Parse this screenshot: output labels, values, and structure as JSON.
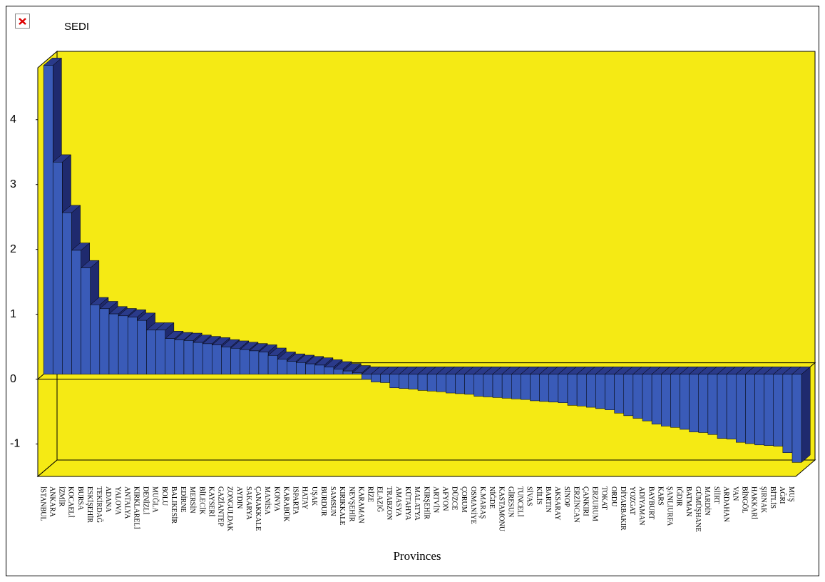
{
  "chart_data": {
    "type": "bar3d",
    "title": "SEDI",
    "x_label": "Provinces",
    "categories": [
      "İSTANBUL",
      "ANKARA",
      "İZMİR",
      "KOCAELİ",
      "BURSA",
      "ESKİŞEHİR",
      "TEKİRDAĞ",
      "ADANA",
      "YALOVA",
      "ANTALYA",
      "KIRKLARELİ",
      "DENİZLİ",
      "MUĞLA",
      "BOLU",
      "BALIKESİR",
      "EDİRNE",
      "MERSİN",
      "BİLECİK",
      "KAYSERİ",
      "GAZİANTEP",
      "ZONGULDAK",
      "AYDIN",
      "SAKARYA",
      "ÇANAKKALE",
      "MANİSA",
      "KONYA",
      "KARABÜK",
      "ISPARTA",
      "HATAY",
      "UŞAK",
      "BURDUR",
      "SAMSUN",
      "KIRIKKALE",
      "NEVŞEHİR",
      "KARAMAN",
      "RİZE",
      "ELAZIĞ",
      "TRABZON",
      "AMASYA",
      "KÜTAHYA",
      "MALATYA",
      "KIRŞEHİR",
      "ARTVİN",
      "AFYON",
      "DÜZCE",
      "ÇORUM",
      "OSMANİYE",
      "K.MARAŞ",
      "NİĞDE",
      "KASTAMONU",
      "GİRESUN",
      "TUNCELİ",
      "SİVAS",
      "KİLİS",
      "BARTIN",
      "AKSARAY",
      "SİNOP",
      "ERZİNCAN",
      "ÇANKIRI",
      "ERZURUM",
      "TOKAT",
      "ORDU",
      "DİYARBAKIR",
      "YOZGAT",
      "ADIYAMAN",
      "BAYBURT",
      "KARS",
      "ŞANLIURFA",
      "IĞDIR",
      "BATMAN",
      "GÜMÜŞHANE",
      "MARDİN",
      "SİİRT",
      "ARDAHAN",
      "VAN",
      "BİNGÖL",
      "HAKKARİ",
      "ŞIRNAK",
      "BİTLİS",
      "AĞRI",
      "MUŞ"
    ],
    "values": [
      4.76,
      3.27,
      2.49,
      1.91,
      1.64,
      1.07,
      1.01,
      0.93,
      0.9,
      0.88,
      0.83,
      0.68,
      0.68,
      0.55,
      0.53,
      0.52,
      0.49,
      0.47,
      0.45,
      0.42,
      0.4,
      0.38,
      0.36,
      0.34,
      0.29,
      0.23,
      0.2,
      0.18,
      0.16,
      0.14,
      0.11,
      0.08,
      0.05,
      0.02,
      -0.08,
      -0.12,
      -0.13,
      -0.21,
      -0.22,
      -0.23,
      -0.25,
      -0.26,
      -0.27,
      -0.29,
      -0.3,
      -0.31,
      -0.34,
      -0.35,
      -0.36,
      -0.37,
      -0.38,
      -0.39,
      -0.41,
      -0.42,
      -0.43,
      -0.44,
      -0.48,
      -0.49,
      -0.51,
      -0.53,
      -0.55,
      -0.6,
      -0.64,
      -0.68,
      -0.72,
      -0.77,
      -0.8,
      -0.82,
      -0.85,
      -0.89,
      -0.9,
      -0.93,
      -0.99,
      -1.0,
      -1.05,
      -1.07,
      -1.09,
      -1.1,
      -1.11,
      -1.21,
      -1.36
    ],
    "color": "#3a5bb8",
    "ylim": [
      -1.5,
      4.8
    ],
    "yticks": [
      -1,
      0,
      1,
      2,
      3,
      4
    ],
    "wall_color": "#f5ea14"
  }
}
